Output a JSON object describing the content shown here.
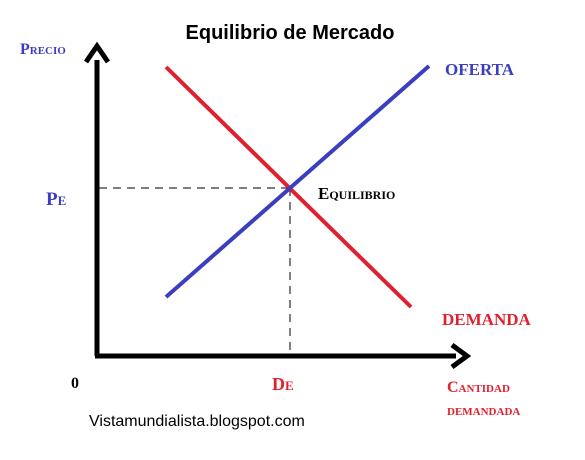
{
  "title": "Equilibrio de Mercado",
  "y_axis_label": "Precio",
  "x_axis_label_line1": "Cantidad",
  "x_axis_label_line2": "demandada",
  "origin_label": "0",
  "price_eq_label": "Pe",
  "quantity_eq_label": "De",
  "supply_label": "OFERTA",
  "demand_label": "DEMANDA",
  "equilibrium_label": "Equilibrio",
  "credit": "Vistamundialista.blogspot.com",
  "colors": {
    "supply": "#3b3fbf",
    "demand": "#e0202e",
    "axis": "#000000",
    "y_label": "#3b3fbf",
    "x_label": "#e0202e"
  }
}
